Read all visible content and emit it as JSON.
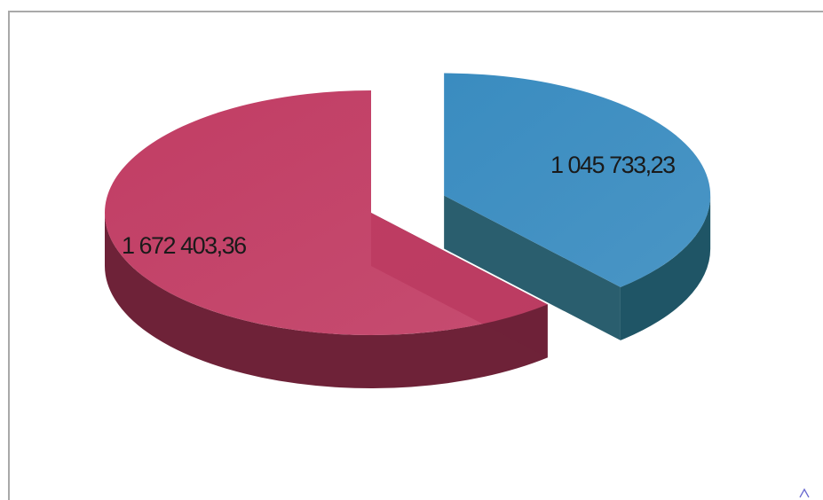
{
  "chart_data": {
    "type": "pie",
    "style": "3d-exploded",
    "legend": "none",
    "slices": [
      {
        "value": 1045733.23,
        "label": "1 045 733,23",
        "color": "#3a8cc0",
        "side_color": "#1f5566"
      },
      {
        "value": 1672403.36,
        "label": "1 672 403,36",
        "color": "#c13d64",
        "side_color": "#6e2238"
      }
    ]
  }
}
